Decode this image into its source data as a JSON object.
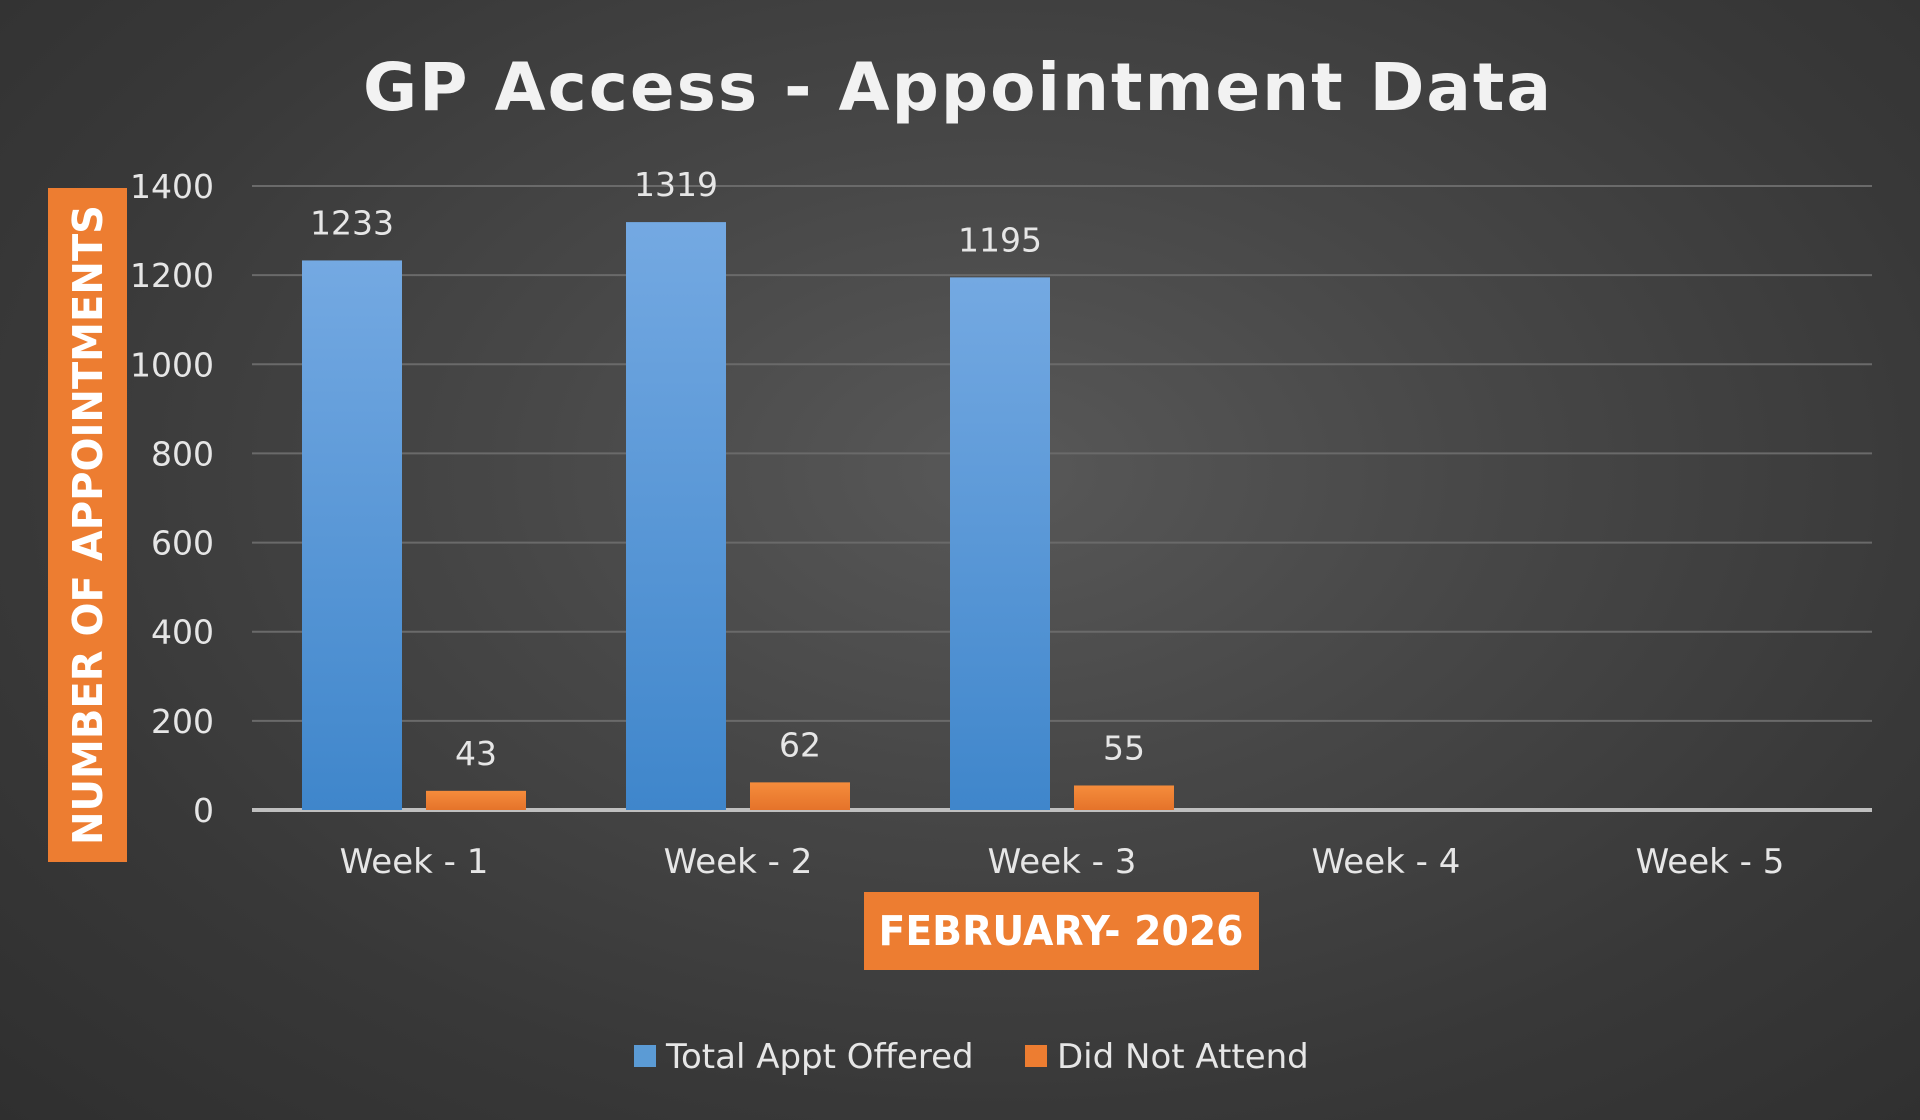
{
  "chart_data": {
    "type": "bar",
    "title": "GP Access - Appointment Data",
    "xlabel": "FEBRUARY- 2026",
    "ylabel": "NUMBER OF APPOINTMENTS",
    "categories": [
      "Week - 1",
      "Week - 2",
      "Week - 3",
      "Week - 4",
      "Week - 5"
    ],
    "series": [
      {
        "name": "Total Appt Offered",
        "values": [
          1233,
          1319,
          1195,
          null,
          null
        ],
        "color": "#5b9bd5"
      },
      {
        "name": "Did Not Attend",
        "values": [
          43,
          62,
          55,
          null,
          null
        ],
        "color": "#ed7d31"
      }
    ],
    "ylim": [
      0,
      1400
    ],
    "yticks": [
      0,
      200,
      400,
      600,
      800,
      1000,
      1200,
      1400
    ],
    "grid": true,
    "legend_position": "bottom",
    "data_labels": true,
    "colors": {
      "axis_title_bg": "#ed7d31",
      "gridline": "#6a6a6a",
      "baseline": "#bfbfbf"
    }
  }
}
